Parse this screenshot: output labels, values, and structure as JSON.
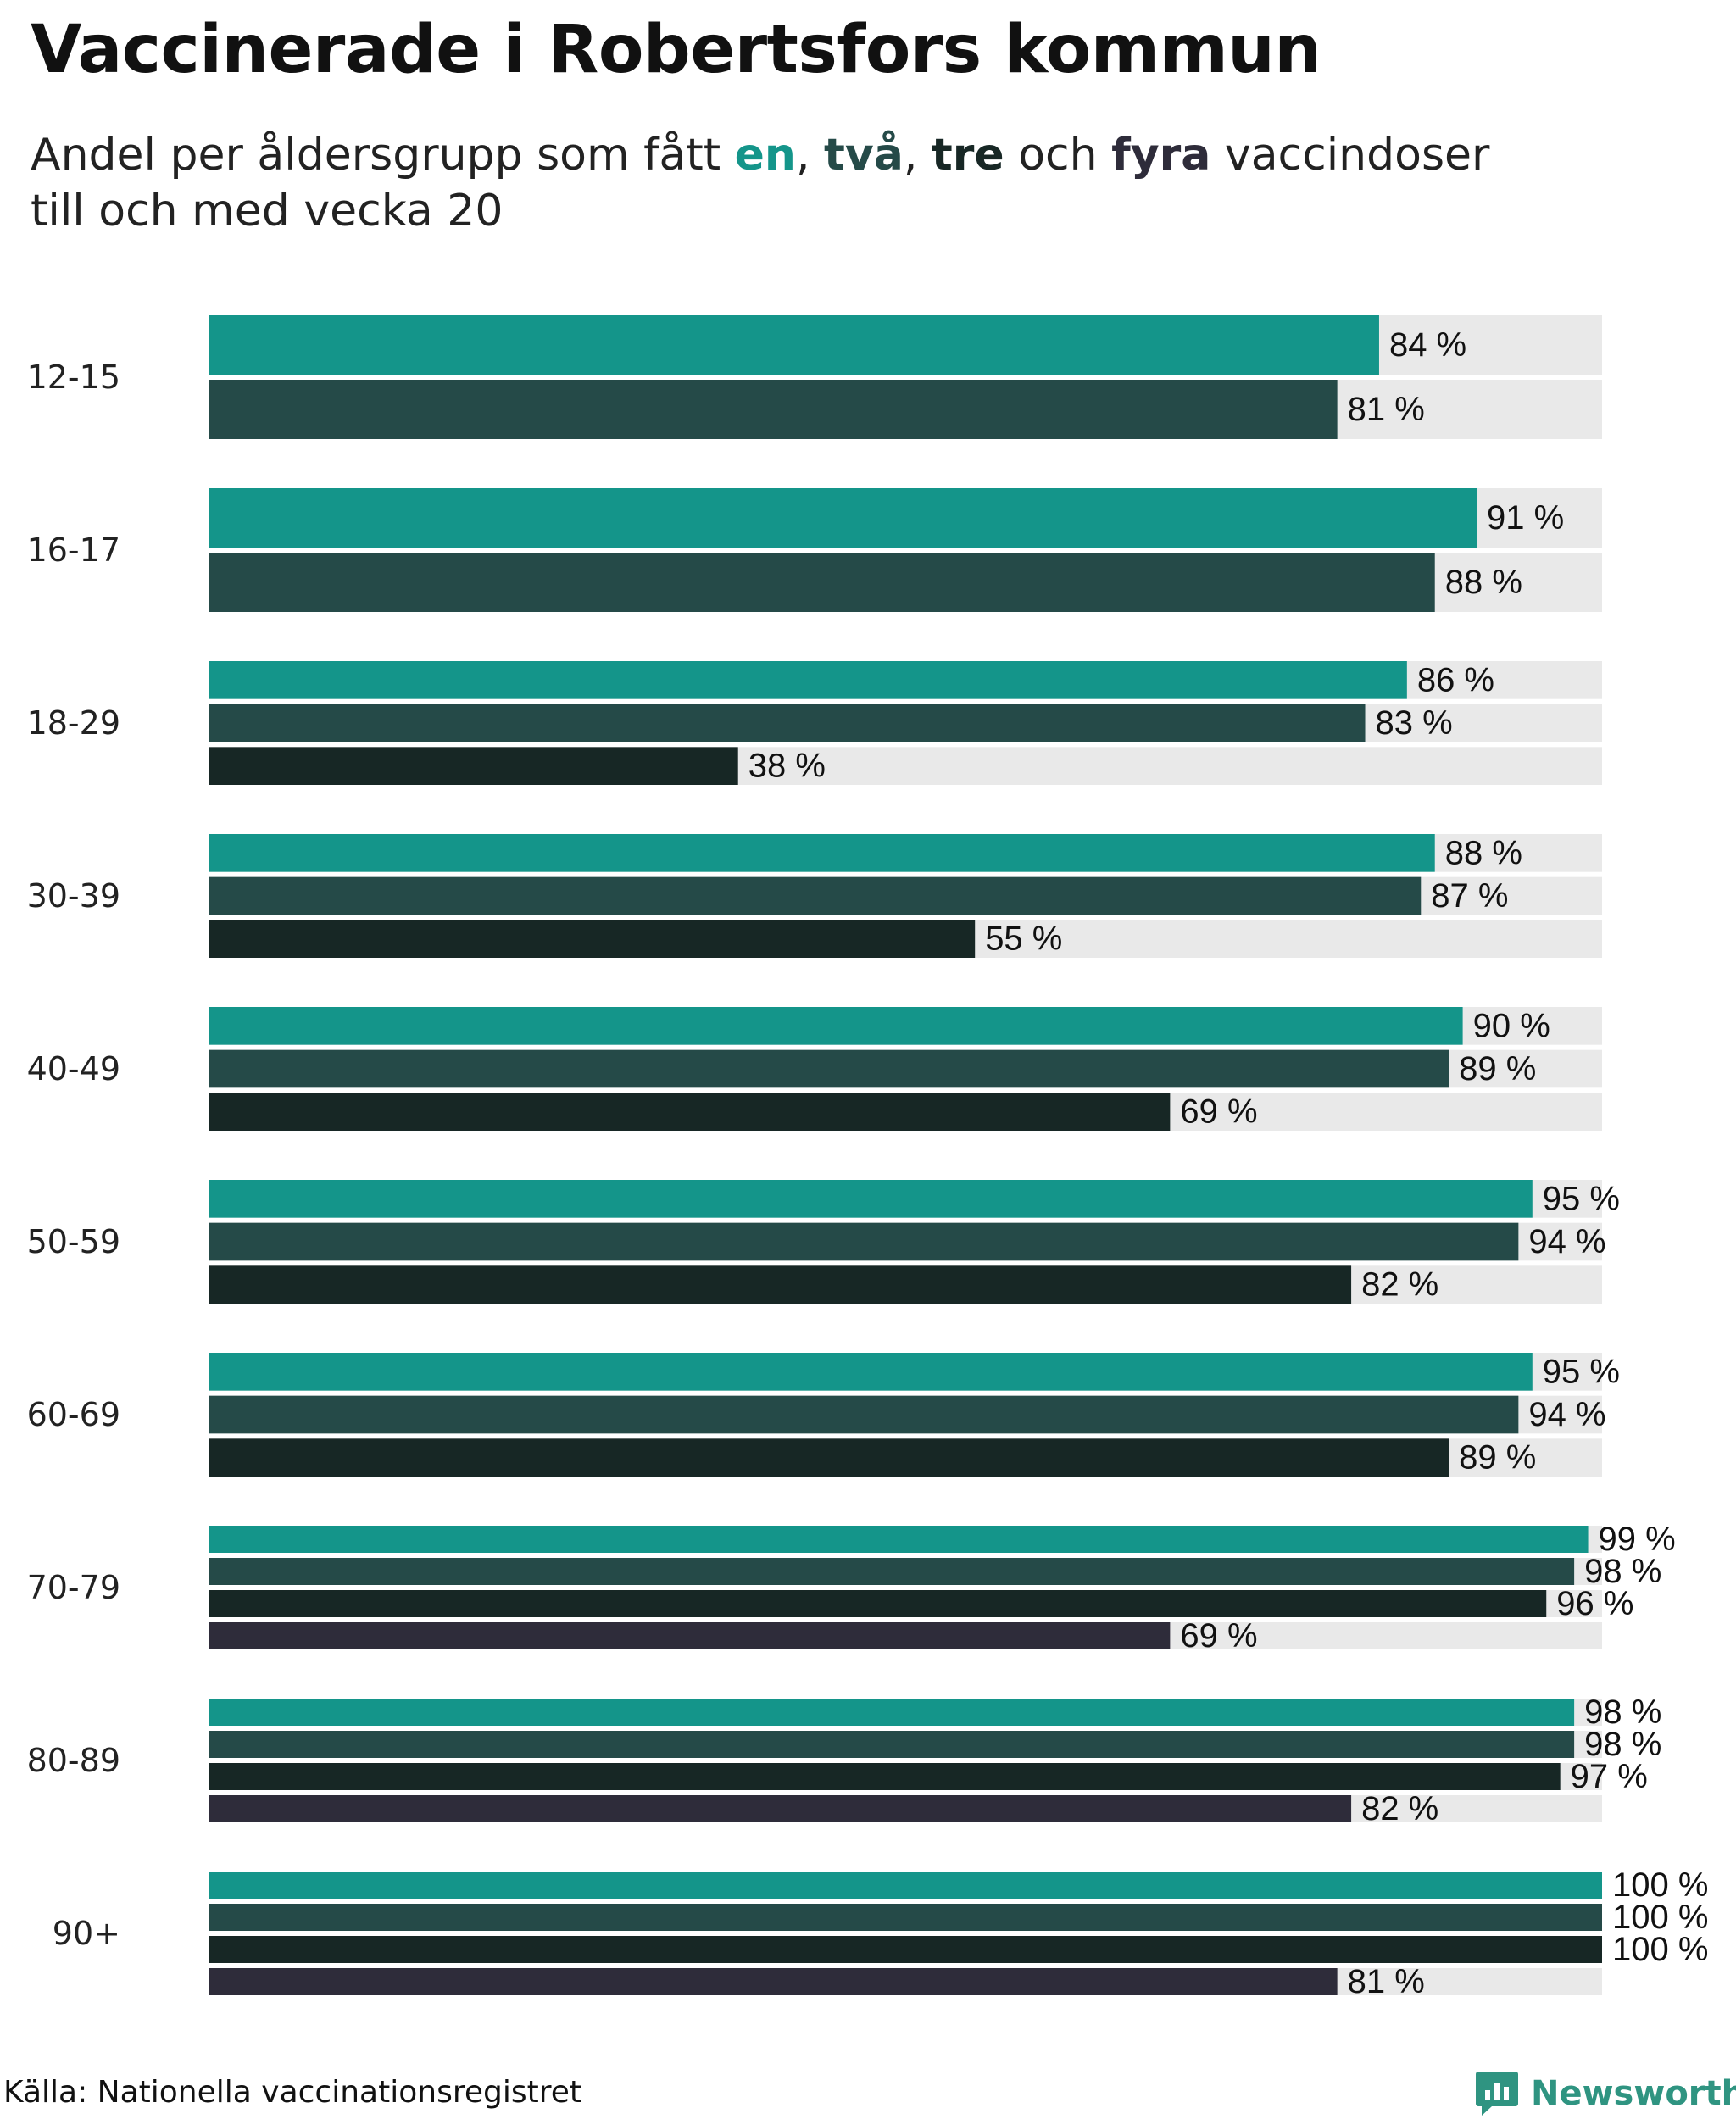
{
  "title": "Vaccinerade i Robertsfors kommun",
  "subtitle": {
    "before": "Andel per åldersgrupp som fått ",
    "dose1": "en",
    "sep1": ", ",
    "dose2": "två",
    "sep2": ", ",
    "dose3": "tre",
    "sep3": " och ",
    "dose4": "fyra",
    "after_line1": " vaccindoser",
    "line2": "till och med vecka 20"
  },
  "source": "Källa: Nationella vaccinationsregistret",
  "brand": "Newsworthy",
  "colors": {
    "dose1": "#14958a",
    "dose2": "#254a48",
    "dose3": "#172725",
    "dose4": "#2e2c3a",
    "track": "#e9e9e9",
    "brand": "#2f9481"
  },
  "chart_data": {
    "type": "bar",
    "orientation": "horizontal",
    "xlim": [
      0,
      100
    ],
    "unit": "%",
    "grid": false,
    "legend": "none (doses color-coded in subtitle)",
    "categories": [
      "12-15",
      "16-17",
      "18-29",
      "30-39",
      "40-49",
      "50-59",
      "60-69",
      "70-79",
      "80-89",
      "90+"
    ],
    "series": [
      {
        "name": "en",
        "values": [
          84,
          91,
          86,
          88,
          90,
          95,
          95,
          99,
          98,
          100
        ]
      },
      {
        "name": "två",
        "values": [
          81,
          88,
          83,
          87,
          89,
          94,
          94,
          98,
          98,
          100
        ]
      },
      {
        "name": "tre",
        "values": [
          null,
          null,
          38,
          55,
          69,
          82,
          89,
          96,
          97,
          100
        ]
      },
      {
        "name": "fyra",
        "values": [
          null,
          null,
          null,
          null,
          null,
          null,
          null,
          69,
          82,
          81
        ]
      }
    ],
    "value_labels": [
      [
        "84 %",
        "81 %"
      ],
      [
        "91 %",
        "88 %"
      ],
      [
        "86 %",
        "83 %",
        "38 %"
      ],
      [
        "88 %",
        "87 %",
        "55 %"
      ],
      [
        "90 %",
        "89 %",
        "69 %"
      ],
      [
        "95 %",
        "94 %",
        "82 %"
      ],
      [
        "95 %",
        "94 %",
        "89 %"
      ],
      [
        "99 %",
        "98 %",
        "96 %",
        "69 %"
      ],
      [
        "98 %",
        "98 %",
        "97 %",
        "82 %"
      ],
      [
        "100 %",
        "100 %",
        "100 %",
        "81 %"
      ]
    ]
  }
}
